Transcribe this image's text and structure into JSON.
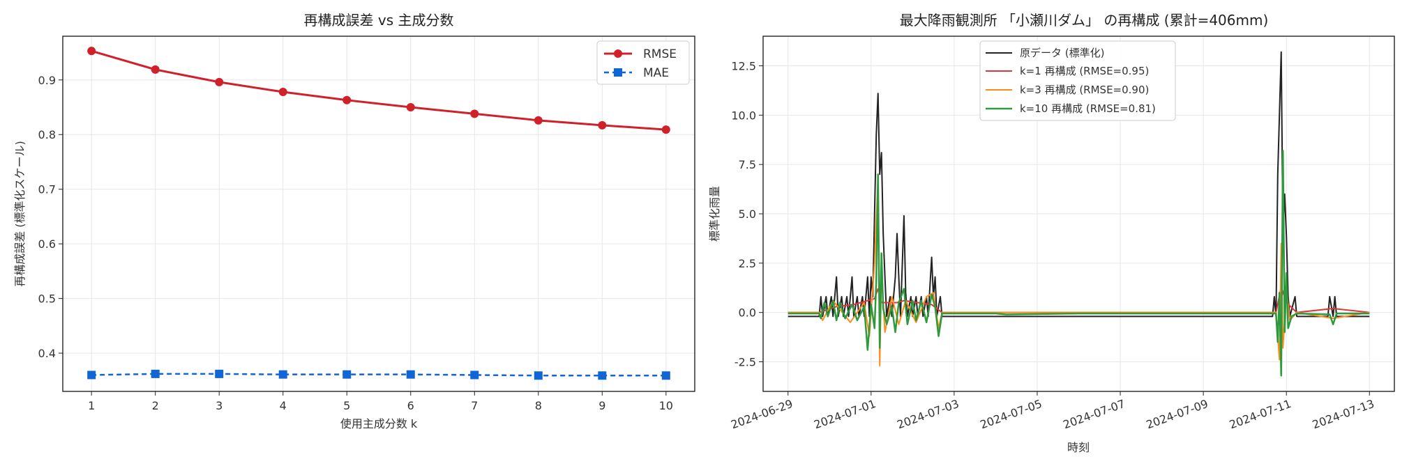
{
  "colors": {
    "rmse": "#d0202a",
    "mae": "#1166d6",
    "orig": "#222222",
    "k1": "#e0353a",
    "k3": "#ff8c1a",
    "k10": "#2e9a3d"
  },
  "chart_data": [
    {
      "type": "line",
      "title": "再構成誤差 vs 主成分数",
      "xlabel": "使用主成分数 k",
      "ylabel": "再構成誤差 (標準化スケール)",
      "x": [
        1,
        2,
        3,
        4,
        5,
        6,
        7,
        8,
        9,
        10
      ],
      "xticks": [
        "1",
        "2",
        "3",
        "4",
        "5",
        "6",
        "7",
        "8",
        "9",
        "10"
      ],
      "yticks": [
        "0.4",
        "0.5",
        "0.6",
        "0.7",
        "0.8",
        "0.9"
      ],
      "xlim": [
        0.55,
        10.45
      ],
      "ylim": [
        0.33,
        0.98
      ],
      "grid": true,
      "legend_position": "top-right",
      "series": [
        {
          "name": "RMSE",
          "marker": "circle",
          "style": "solid",
          "values": [
            0.953,
            0.919,
            0.896,
            0.878,
            0.863,
            0.85,
            0.838,
            0.826,
            0.817,
            0.809
          ]
        },
        {
          "name": "MAE",
          "marker": "square",
          "style": "dashed",
          "values": [
            0.36,
            0.362,
            0.362,
            0.361,
            0.361,
            0.361,
            0.36,
            0.359,
            0.359,
            0.359
          ]
        }
      ]
    },
    {
      "type": "line",
      "title": "最大降雨観測所 「小瀬川ダム」 の再構成 (累計=406mm)",
      "xlabel": "時刻",
      "ylabel": "標準化雨量",
      "xticks": [
        "2024-06-29",
        "2024-07-01",
        "2024-07-03",
        "2024-07-05",
        "2024-07-07",
        "2024-07-09",
        "2024-07-11",
        "2024-07-13"
      ],
      "yticks": [
        "-2.5",
        "0.0",
        "2.5",
        "5.0",
        "7.5",
        "10.0",
        "12.5"
      ],
      "xlim": [
        "2024-06-28T09:36",
        "2024-07-13T14:24"
      ],
      "ylim": [
        -4.0,
        14.0
      ],
      "grid": true,
      "legend_position": "top-center",
      "baseline": -0.2,
      "series": [
        {
          "name": "原データ (標準化)",
          "key": "orig",
          "points": [
            [
              "2024-06-29T00:00",
              -0.2
            ],
            [
              "2024-06-29T18:00",
              -0.2
            ],
            [
              "2024-06-29T19:00",
              0.8
            ],
            [
              "2024-06-29T20:00",
              -0.2
            ],
            [
              "2024-06-29T22:00",
              0.8
            ],
            [
              "2024-06-29T23:00",
              -0.2
            ],
            [
              "2024-06-30T01:00",
              0.8
            ],
            [
              "2024-06-30T02:00",
              -0.2
            ],
            [
              "2024-06-30T04:00",
              1.8
            ],
            [
              "2024-06-30T05:00",
              -0.2
            ],
            [
              "2024-06-30T07:00",
              0.8
            ],
            [
              "2024-06-30T08:00",
              -0.2
            ],
            [
              "2024-06-30T10:00",
              0.8
            ],
            [
              "2024-06-30T11:00",
              -0.2
            ],
            [
              "2024-06-30T13:00",
              1.8
            ],
            [
              "2024-06-30T14:00",
              -0.2
            ],
            [
              "2024-06-30T16:00",
              0.8
            ],
            [
              "2024-06-30T17:00",
              -0.2
            ],
            [
              "2024-06-30T19:00",
              0.8
            ],
            [
              "2024-06-30T20:00",
              -0.2
            ],
            [
              "2024-06-30T22:00",
              1.8
            ],
            [
              "2024-06-30T23:00",
              -0.2
            ],
            [
              "2024-07-01T00:00",
              1.8
            ],
            [
              "2024-07-01T01:00",
              0.8
            ],
            [
              "2024-07-01T02:00",
              5.0
            ],
            [
              "2024-07-01T03:00",
              9.0
            ],
            [
              "2024-07-01T04:00",
              11.1
            ],
            [
              "2024-07-01T05:00",
              7.0
            ],
            [
              "2024-07-01T06:00",
              8.1
            ],
            [
              "2024-07-01T07:00",
              4.0
            ],
            [
              "2024-07-01T08:00",
              1.8
            ],
            [
              "2024-07-01T09:00",
              -0.2
            ],
            [
              "2024-07-01T11:00",
              0.8
            ],
            [
              "2024-07-01T12:00",
              -0.2
            ],
            [
              "2024-07-01T14:00",
              1.8
            ],
            [
              "2024-07-01T15:00",
              4.0
            ],
            [
              "2024-07-01T16:00",
              1.8
            ],
            [
              "2024-07-01T17:00",
              -0.2
            ],
            [
              "2024-07-01T19:00",
              4.9
            ],
            [
              "2024-07-01T20:00",
              1.0
            ],
            [
              "2024-07-01T21:00",
              -0.2
            ],
            [
              "2024-07-01T23:00",
              0.8
            ],
            [
              "2024-07-02T00:00",
              -0.2
            ],
            [
              "2024-07-02T02:00",
              0.8
            ],
            [
              "2024-07-02T03:00",
              -0.2
            ],
            [
              "2024-07-02T05:00",
              0.8
            ],
            [
              "2024-07-02T06:00",
              -0.2
            ],
            [
              "2024-07-02T08:00",
              0.8
            ],
            [
              "2024-07-02T09:00",
              -0.2
            ],
            [
              "2024-07-02T11:00",
              2.8
            ],
            [
              "2024-07-02T12:00",
              0.8
            ],
            [
              "2024-07-02T13:00",
              1.8
            ],
            [
              "2024-07-02T14:00",
              -0.2
            ],
            [
              "2024-07-02T16:00",
              0.8
            ],
            [
              "2024-07-02T17:00",
              -0.2
            ],
            [
              "2024-07-10T16:00",
              -0.2
            ],
            [
              "2024-07-10T17:00",
              0.8
            ],
            [
              "2024-07-10T18:00",
              -0.2
            ],
            [
              "2024-07-10T19:00",
              7.0
            ],
            [
              "2024-07-10T20:00",
              10.1
            ],
            [
              "2024-07-10T21:00",
              13.2
            ],
            [
              "2024-07-10T22:00",
              4.0
            ],
            [
              "2024-07-10T23:00",
              6.0
            ],
            [
              "2024-07-11T00:00",
              3.9
            ],
            [
              "2024-07-11T01:00",
              0.8
            ],
            [
              "2024-07-11T02:00",
              -0.2
            ],
            [
              "2024-07-11T05:00",
              0.8
            ],
            [
              "2024-07-11T06:00",
              -0.2
            ],
            [
              "2024-07-12T00:00",
              -0.2
            ],
            [
              "2024-07-12T01:00",
              0.8
            ],
            [
              "2024-07-12T03:00",
              -0.2
            ],
            [
              "2024-07-12T04:00",
              0.8
            ],
            [
              "2024-07-12T05:00",
              -0.2
            ],
            [
              "2024-07-13T00:00",
              -0.2
            ]
          ]
        },
        {
          "name": "k=1 再構成 (RMSE=0.95)",
          "key": "k1",
          "points": [
            [
              "2024-06-29T00:00",
              0.0
            ],
            [
              "2024-06-29T18:00",
              0.0
            ],
            [
              "2024-06-30T04:00",
              0.3
            ],
            [
              "2024-06-30T14:00",
              0.4
            ],
            [
              "2024-07-01T02:00",
              0.7
            ],
            [
              "2024-07-01T04:00",
              1.2
            ],
            [
              "2024-07-01T06:00",
              0.5
            ],
            [
              "2024-07-01T15:00",
              0.5
            ],
            [
              "2024-07-01T19:00",
              0.6
            ],
            [
              "2024-07-02T11:00",
              0.4
            ],
            [
              "2024-07-02T17:00",
              0.0
            ],
            [
              "2024-07-10T18:00",
              0.0
            ],
            [
              "2024-07-10T21:00",
              1.3
            ],
            [
              "2024-07-11T00:00",
              0.5
            ],
            [
              "2024-07-11T06:00",
              0.0
            ],
            [
              "2024-07-12T03:00",
              0.2
            ],
            [
              "2024-07-13T00:00",
              0.0
            ]
          ]
        },
        {
          "name": "k=3 再構成 (RMSE=0.90)",
          "key": "k3",
          "points": [
            [
              "2024-06-29T00:00",
              0.0
            ],
            [
              "2024-06-29T18:00",
              0.0
            ],
            [
              "2024-06-29T20:00",
              -0.4
            ],
            [
              "2024-06-30T02:00",
              0.6
            ],
            [
              "2024-06-30T12:00",
              -0.5
            ],
            [
              "2024-06-30T20:00",
              0.5
            ],
            [
              "2024-06-30T23:00",
              -1.2
            ],
            [
              "2024-07-01T02:00",
              2.5
            ],
            [
              "2024-07-01T04:00",
              6.8
            ],
            [
              "2024-07-01T05:00",
              -2.7
            ],
            [
              "2024-07-01T06:00",
              2.0
            ],
            [
              "2024-07-01T08:00",
              -1.0
            ],
            [
              "2024-07-01T12:00",
              0.8
            ],
            [
              "2024-07-01T16:00",
              -0.6
            ],
            [
              "2024-07-01T20:00",
              0.6
            ],
            [
              "2024-07-02T02:00",
              -0.5
            ],
            [
              "2024-07-02T08:00",
              0.8
            ],
            [
              "2024-07-02T12:00",
              1.0
            ],
            [
              "2024-07-02T15:00",
              -0.8
            ],
            [
              "2024-07-02T17:00",
              0.0
            ],
            [
              "2024-07-10T18:00",
              0.0
            ],
            [
              "2024-07-10T20:00",
              -2.4
            ],
            [
              "2024-07-10T21:00",
              3.5
            ],
            [
              "2024-07-10T22:00",
              -1.8
            ],
            [
              "2024-07-11T00:00",
              1.2
            ],
            [
              "2024-07-11T02:00",
              -0.4
            ],
            [
              "2024-07-11T06:00",
              0.0
            ],
            [
              "2024-07-12T03:00",
              -0.3
            ],
            [
              "2024-07-13T00:00",
              0.0
            ]
          ]
        },
        {
          "name": "k=10 再構成 (RMSE=0.81)",
          "key": "k10",
          "points": [
            [
              "2024-06-29T00:00",
              -0.05
            ],
            [
              "2024-06-29T18:00",
              -0.05
            ],
            [
              "2024-06-29T19:00",
              -0.3
            ],
            [
              "2024-06-29T21:00",
              0.5
            ],
            [
              "2024-06-29T23:00",
              -0.2
            ],
            [
              "2024-06-30T02:00",
              0.6
            ],
            [
              "2024-06-30T04:00",
              -0.4
            ],
            [
              "2024-06-30T06:00",
              0.5
            ],
            [
              "2024-06-30T09:00",
              -0.3
            ],
            [
              "2024-06-30T13:00",
              0.4
            ],
            [
              "2024-06-30T16:00",
              -0.4
            ],
            [
              "2024-06-30T20:00",
              0.3
            ],
            [
              "2024-06-30T22:00",
              -1.9
            ],
            [
              "2024-07-01T00:00",
              0.4
            ],
            [
              "2024-07-01T02:00",
              -0.8
            ],
            [
              "2024-07-01T03:00",
              1.6
            ],
            [
              "2024-07-01T04:00",
              7.0
            ],
            [
              "2024-07-01T05:00",
              -1.8
            ],
            [
              "2024-07-01T06:00",
              3.0
            ],
            [
              "2024-07-01T07:00",
              0.2
            ],
            [
              "2024-07-01T09:00",
              -0.6
            ],
            [
              "2024-07-01T12:00",
              0.3
            ],
            [
              "2024-07-01T14:00",
              -1.0
            ],
            [
              "2024-07-01T16:00",
              0.5
            ],
            [
              "2024-07-01T19:00",
              1.2
            ],
            [
              "2024-07-01T21:00",
              -0.6
            ],
            [
              "2024-07-02T00:00",
              0.6
            ],
            [
              "2024-07-02T02:00",
              -0.4
            ],
            [
              "2024-07-02T05:00",
              0.6
            ],
            [
              "2024-07-02T08:00",
              -0.5
            ],
            [
              "2024-07-02T11:00",
              0.9
            ],
            [
              "2024-07-02T13:00",
              0.3
            ],
            [
              "2024-07-02T15:00",
              -1.2
            ],
            [
              "2024-07-02T17:00",
              -0.05
            ],
            [
              "2024-07-04T00:00",
              -0.05
            ],
            [
              "2024-07-04T06:00",
              -0.1
            ],
            [
              "2024-07-06T00:00",
              -0.05
            ],
            [
              "2024-07-08T00:00",
              -0.05
            ],
            [
              "2024-07-10T18:00",
              -0.05
            ],
            [
              "2024-07-10T19:00",
              -1.5
            ],
            [
              "2024-07-10T20:00",
              1.0
            ],
            [
              "2024-07-10T21:00",
              -3.2
            ],
            [
              "2024-07-10T22:00",
              8.2
            ],
            [
              "2024-07-10T23:00",
              -1.0
            ],
            [
              "2024-07-11T00:00",
              2.0
            ],
            [
              "2024-07-11T01:00",
              -0.8
            ],
            [
              "2024-07-11T03:00",
              -0.2
            ],
            [
              "2024-07-11T06:00",
              -0.05
            ],
            [
              "2024-07-12T01:00",
              -0.1
            ],
            [
              "2024-07-12T03:00",
              -0.6
            ],
            [
              "2024-07-12T05:00",
              -0.05
            ],
            [
              "2024-07-13T00:00",
              -0.05
            ]
          ]
        }
      ]
    }
  ]
}
